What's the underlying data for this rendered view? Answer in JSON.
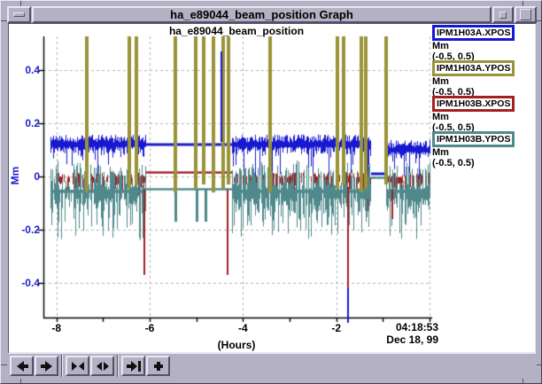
{
  "window": {
    "title": "ha_e89044_beam_position Graph",
    "controls": [
      "window-menu",
      "minimize",
      "maximize"
    ]
  },
  "toolbar": {
    "button_groups": [
      [
        {
          "name": "scroll-left",
          "icon": "arrow-left-icon"
        },
        {
          "name": "scroll-right",
          "icon": "arrow-right-icon"
        }
      ],
      [
        {
          "name": "zoom-in-x",
          "icon": "zoom-in-horizontal-icon"
        },
        {
          "name": "zoom-out-x",
          "icon": "zoom-out-horizontal-icon"
        }
      ],
      [
        {
          "name": "go-to-latest",
          "icon": "skip-to-end-icon"
        },
        {
          "name": "add-channel",
          "icon": "plus-icon"
        }
      ]
    ]
  },
  "legend": {
    "items": [
      {
        "label": "IPM1H03A.XPOS",
        "unit": "Mm",
        "range": "(-0.5, 0.5)",
        "color": "#1616d6"
      },
      {
        "label": "IPM1H03A.YPOS",
        "unit": "Mm",
        "range": "(-0.5, 0.5)",
        "color": "#99933a"
      },
      {
        "label": "IPM1H03B.XPOS",
        "unit": "Mm",
        "range": "(-0.5, 0.5)",
        "color": "#a32020"
      },
      {
        "label": "IPM1H03B.YPOS",
        "unit": "Mm",
        "range": "(-0.5, 0.5)",
        "color": "#4f898b"
      }
    ]
  },
  "chart_data": {
    "type": "line",
    "title": "ha_e89044_beam_position",
    "xlabel": "(Hours)",
    "ylabel": "Mm",
    "end_time_label": "04:18:53",
    "end_date_label": "Dec 18, 99",
    "xlim": [
      -8.28,
      0
    ],
    "ylim": [
      -0.5,
      0.5
    ],
    "x_ticks_every_hours": 1,
    "x_tick_labels": [
      {
        "value": -8,
        "label": "-8"
      },
      {
        "value": -6,
        "label": "-6"
      },
      {
        "value": -4,
        "label": "-4"
      },
      {
        "value": -2,
        "label": "-2"
      }
    ],
    "y_ticks": [
      {
        "value": 0.4,
        "label": "0.4"
      },
      {
        "value": 0.2,
        "label": "0.2"
      },
      {
        "value": 0,
        "label": "0"
      },
      {
        "value": -0.2,
        "label": "-0.2"
      },
      {
        "value": -0.4,
        "label": "-0.4"
      }
    ],
    "grid_x_values": [
      -8,
      -6,
      -4,
      -2,
      0
    ],
    "grid_style": "dashed",
    "regions": {
      "data_start": -8.14,
      "quiet": [
        -6.08,
        -4.25
      ],
      "gap": [
        -1.27,
        -0.94
      ],
      "data_end": 0
    },
    "series": [
      {
        "name": "IPM1H03A.XPOS",
        "color": "#1818d0",
        "style": "noisy-line",
        "baseline": 0.12,
        "baseline_after_gap": 0.1,
        "noise_up": 0.03,
        "noise_down": 0.055,
        "quiet_value": 0.12,
        "gap_value": 0.01,
        "spikes": [
          {
            "t": -4.48,
            "from": 0.13,
            "to": 0.47
          },
          {
            "t": -1.77,
            "from": -0.42,
            "to": -0.55
          }
        ]
      },
      {
        "name": "IPM1H03A.YPOS",
        "color": "#99933a",
        "style": "offscale-bars",
        "bar_top": 0.5,
        "bar_bottom": -0.06,
        "bar_times": [
          -7.34,
          -6.43,
          -6.28,
          -5.45,
          -5.01,
          -4.84,
          -4.64,
          -4.42,
          -4.31,
          -3.42,
          -1.98,
          -1.84,
          -1.46,
          -1.37,
          -0.93
        ]
      },
      {
        "name": "IPM1H03B.XPOS",
        "color": "#a32020",
        "style": "noisy-line",
        "baseline": -0.015,
        "noise_up": 0.02,
        "noise_down": 0.06,
        "quiet_value": 0.015,
        "gap_value": null,
        "spikes": [
          {
            "t": -6.13,
            "from": -0.05,
            "to": -0.37
          },
          {
            "t": -4.34,
            "from": -0.05,
            "to": -0.37
          },
          {
            "t": -1.77,
            "from": -0.04,
            "to": -0.42
          },
          {
            "t": -0.82,
            "from": -0.05,
            "to": -0.16
          }
        ]
      },
      {
        "name": "IPM1H03B.YPOS",
        "color": "#4f898b",
        "style": "noisy-line",
        "baseline": -0.06,
        "noise_up": 0.11,
        "noise_down": 0.16,
        "quiet_value": -0.048,
        "gap_value": -0.005,
        "quiet_dips": [
          -5.45,
          -5.0,
          -4.8
        ],
        "spikes": []
      }
    ]
  }
}
